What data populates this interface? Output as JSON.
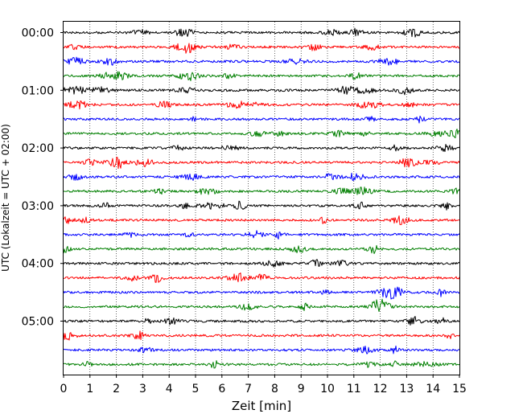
{
  "chart_data": {
    "type": "line",
    "title": "",
    "xlabel": "Zeit  [min]",
    "ylabel": "UTC (Lokalzeit = UTC + 02:00)",
    "xlim": [
      0,
      15
    ],
    "x_ticks": [
      "0",
      "1",
      "2",
      "3",
      "4",
      "5",
      "6",
      "7",
      "8",
      "9",
      "10",
      "11",
      "12",
      "13",
      "14",
      "15"
    ],
    "y_tick_labels": [
      "00:00",
      "01:00",
      "02:00",
      "03:00",
      "04:00",
      "05:00"
    ],
    "trace_interval_minutes": 15,
    "trace_count": 24,
    "color_cycle": [
      "#000000",
      "#ff0000",
      "#0000ff",
      "#007f00"
    ],
    "grid": "vertical dotted lines at each minute"
  }
}
